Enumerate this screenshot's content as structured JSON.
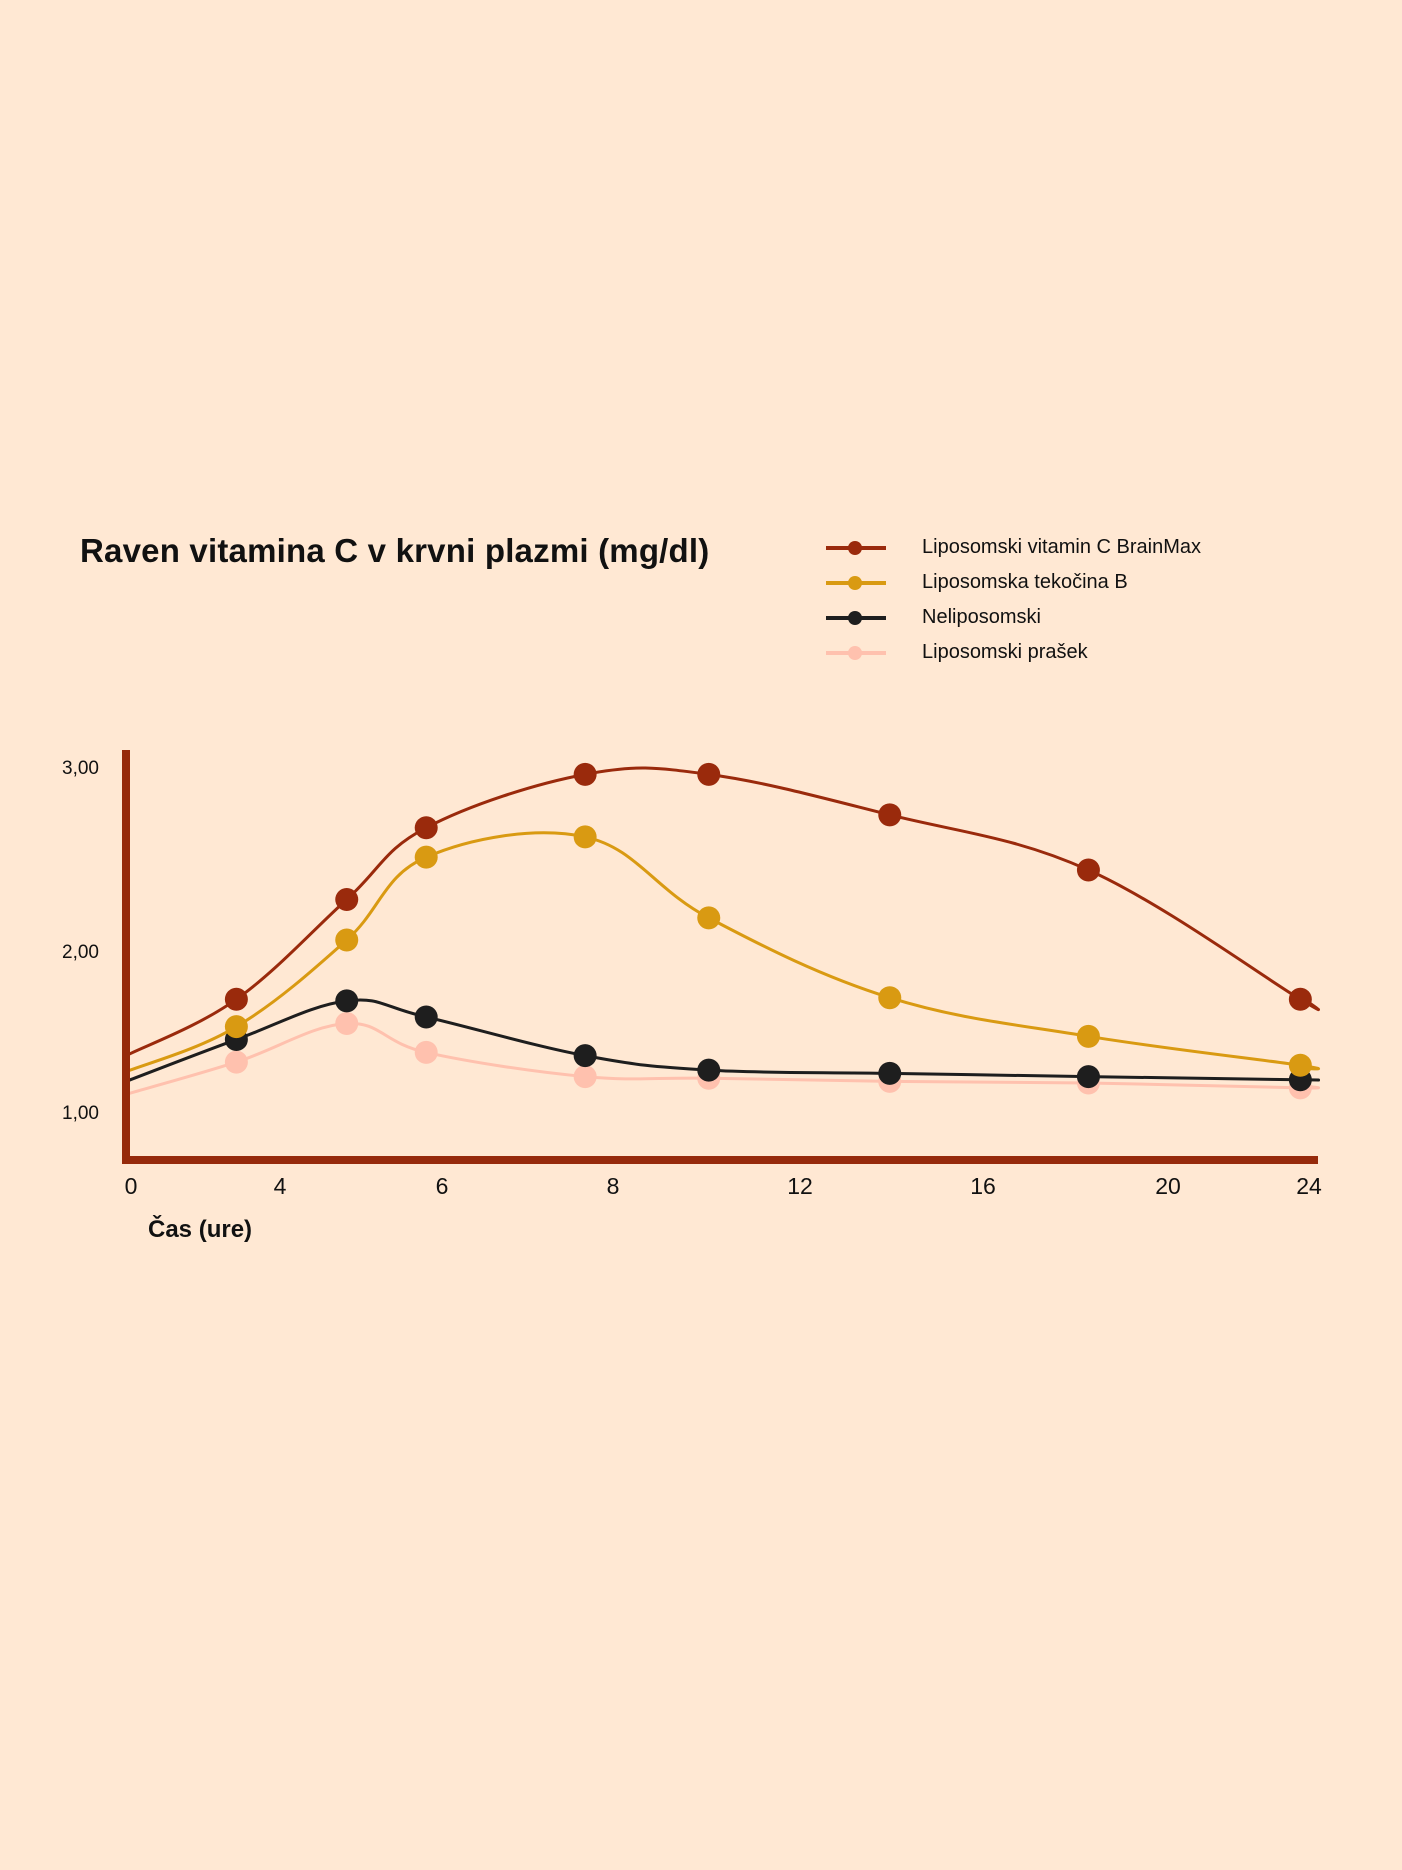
{
  "chart_data": {
    "type": "line",
    "title": "Raven vitamina C v krvni plazmi (mg/dl)",
    "xlabel": "Čas (ure)",
    "ylabel": "",
    "x_tick_labels": [
      "0",
      "4",
      "6",
      "8",
      "12",
      "16",
      "20",
      "24"
    ],
    "y_tick_labels": [
      "1,00",
      "2,00",
      "3,00"
    ],
    "y_ticks": [
      1.0,
      2.0,
      3.0
    ],
    "ylim": [
      0.75,
      3.05
    ],
    "x": [
      2.5,
      5,
      6.8,
      10.4,
      13.2,
      17.3,
      21.8,
      26.6
    ],
    "xlim": [
      0,
      27
    ],
    "legend_position": "top-right",
    "grid": false,
    "axis_color": "#962A0B",
    "series": [
      {
        "name": "Liposomski vitamin C BrainMax",
        "color": "#9A2A0C",
        "start": 1.35,
        "values": [
          1.7,
          2.28,
          2.67,
          2.96,
          2.96,
          2.74,
          2.44,
          1.7
        ],
        "end": 1.7
      },
      {
        "name": "Liposomska tekočina B",
        "color": "#D99A12",
        "start": 1.25,
        "values": [
          1.53,
          2.06,
          2.51,
          2.62,
          2.18,
          1.71,
          1.47,
          1.29
        ],
        "end": 1.27
      },
      {
        "name": "Neliposomski",
        "color": "#1E1E1E",
        "start": 1.19,
        "values": [
          1.45,
          1.69,
          1.59,
          1.35,
          1.26,
          1.24,
          1.22,
          1.2
        ],
        "end": 1.2
      },
      {
        "name": "Liposomski prašek",
        "color": "#FFC1AE",
        "start": 1.11,
        "values": [
          1.31,
          1.55,
          1.37,
          1.22,
          1.21,
          1.19,
          1.18,
          1.15
        ],
        "end": 1.16
      }
    ]
  }
}
